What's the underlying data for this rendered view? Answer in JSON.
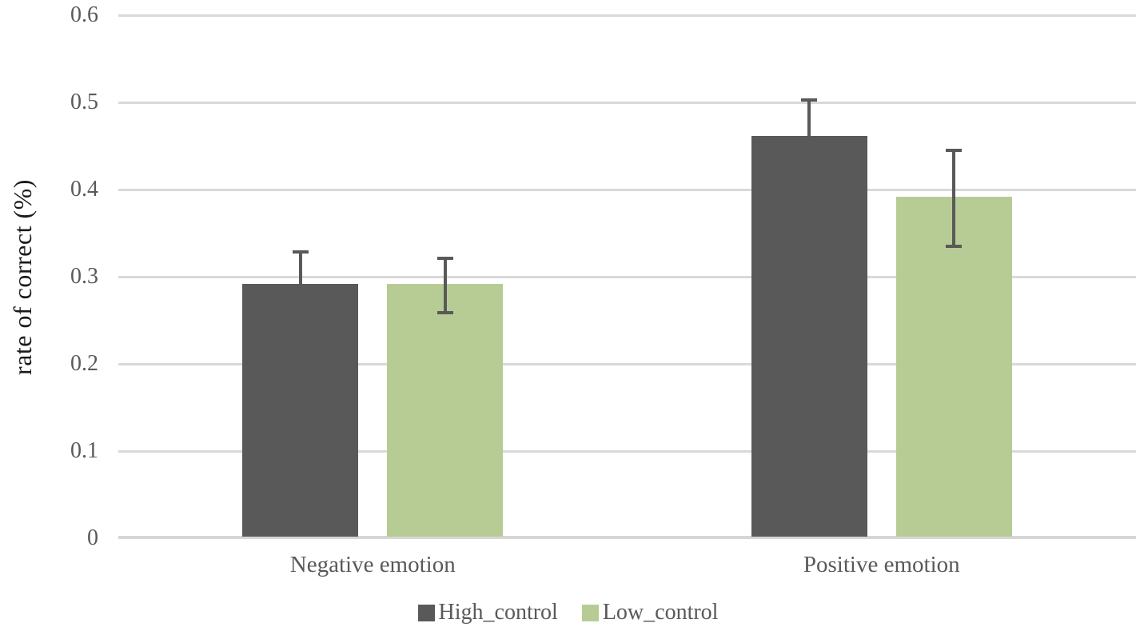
{
  "chart_data": {
    "type": "bar",
    "title": "",
    "xlabel": "",
    "ylabel": "rate of correct (%)",
    "categories": [
      "Negative emotion",
      "Positive emotion"
    ],
    "series": [
      {
        "name": "High_control",
        "color": "#595959",
        "values": [
          0.29,
          0.46
        ],
        "errors": [
          0.04,
          0.045
        ]
      },
      {
        "name": "Low_control",
        "color": "#b7cc95",
        "values": [
          0.29,
          0.39
        ],
        "errors": [
          0.033,
          0.057
        ]
      }
    ],
    "ylim": [
      0,
      0.6
    ],
    "yticks": [
      "0",
      "0.1",
      "0.2",
      "0.3",
      "0.4",
      "0.5",
      "0.6"
    ],
    "grid": true,
    "legend_position": "bottom",
    "colors": {
      "gridline": "#d9d9d9",
      "axis_line": "#d6d6d6",
      "tick_text": "#595959",
      "axis_title_text": "#1a1a1a",
      "error_bar": "#595959",
      "background": "#ffffff"
    }
  }
}
